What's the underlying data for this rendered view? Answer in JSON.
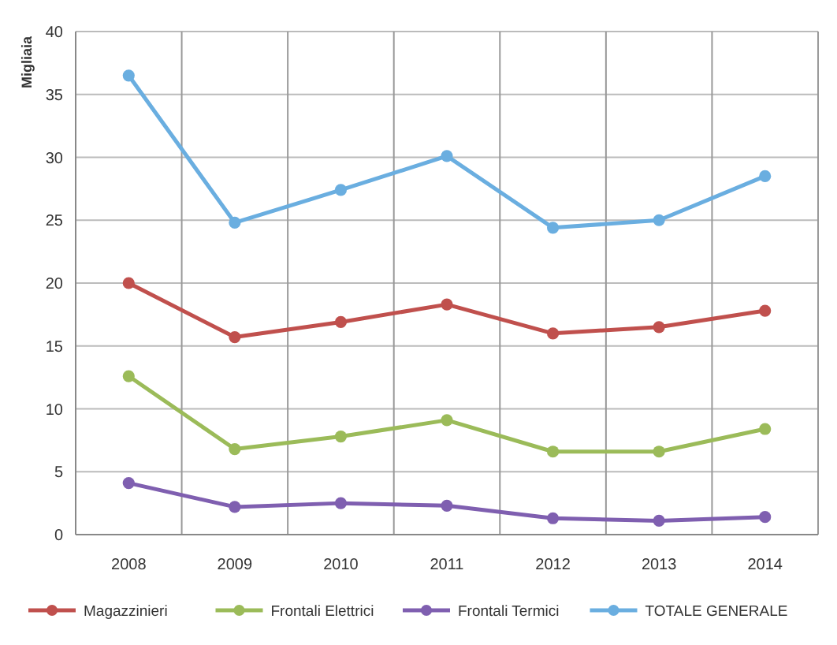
{
  "chart_data": {
    "type": "line",
    "ylabel": "Migliaia",
    "categories": [
      "2008",
      "2009",
      "2010",
      "2011",
      "2012",
      "2013",
      "2014"
    ],
    "series": [
      {
        "name": "Magazzinieri",
        "color": "#c0504d",
        "values": [
          20.0,
          15.7,
          16.9,
          18.3,
          16.0,
          16.5,
          17.8
        ]
      },
      {
        "name": "Frontali Elettrici",
        "color": "#9bbb59",
        "values": [
          12.6,
          6.8,
          7.8,
          9.1,
          6.6,
          6.6,
          8.4
        ]
      },
      {
        "name": "Frontali Termici",
        "color": "#7f5fb0",
        "values": [
          4.1,
          2.2,
          2.5,
          2.3,
          1.3,
          1.1,
          1.4
        ]
      },
      {
        "name": "TOTALE GENERALE",
        "color": "#6aaee0",
        "values": [
          36.5,
          24.8,
          27.4,
          30.1,
          24.4,
          25.0,
          28.5
        ]
      }
    ],
    "ylim": [
      0,
      40
    ],
    "yticks": [
      0,
      5,
      10,
      15,
      20,
      25,
      30,
      35,
      40
    ],
    "grid": true,
    "legend": "bottom",
    "marker": "circle",
    "line_style": "solid"
  }
}
